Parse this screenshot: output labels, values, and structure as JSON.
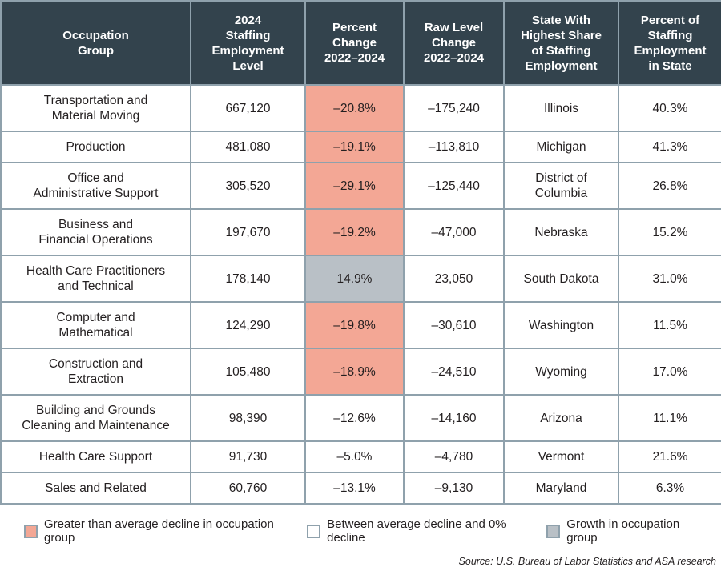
{
  "chart_data": {
    "type": "table",
    "columns": [
      {
        "label": "Occupation\nGroup"
      },
      {
        "label": "2024\nStaffing\nEmployment\nLevel"
      },
      {
        "label": "Percent\nChange\n2022–2024"
      },
      {
        "label": "Raw Level\nChange\n2022–2024"
      },
      {
        "label": "State With\nHighest Share\nof Staffing\nEmployment"
      },
      {
        "label": "Percent of\nStaffing\nEmployment\nin State"
      }
    ],
    "rows": [
      {
        "occupation": "Transportation and\nMaterial Moving",
        "level": "667,120",
        "pct_change": "–20.8%",
        "raw_change": "–175,240",
        "state": "Illinois",
        "pct_in_state": "40.3%",
        "highlight": "pink"
      },
      {
        "occupation": "Production",
        "level": "481,080",
        "pct_change": "–19.1%",
        "raw_change": "–113,810",
        "state": "Michigan",
        "pct_in_state": "41.3%",
        "highlight": "pink"
      },
      {
        "occupation": "Office and\nAdministrative Support",
        "level": "305,520",
        "pct_change": "–29.1%",
        "raw_change": "–125,440",
        "state": "District of\nColumbia",
        "pct_in_state": "26.8%",
        "highlight": "pink"
      },
      {
        "occupation": "Business and\nFinancial Operations",
        "level": "197,670",
        "pct_change": "–19.2%",
        "raw_change": "–47,000",
        "state": "Nebraska",
        "pct_in_state": "15.2%",
        "highlight": "pink"
      },
      {
        "occupation": "Health Care Practitioners\nand Technical",
        "level": "178,140",
        "pct_change": "14.9%",
        "raw_change": "23,050",
        "state": "South Dakota",
        "pct_in_state": "31.0%",
        "highlight": "gray"
      },
      {
        "occupation": "Computer and\nMathematical",
        "level": "124,290",
        "pct_change": "–19.8%",
        "raw_change": "–30,610",
        "state": "Washington",
        "pct_in_state": "11.5%",
        "highlight": "pink"
      },
      {
        "occupation": "Construction and\nExtraction",
        "level": "105,480",
        "pct_change": "–18.9%",
        "raw_change": "–24,510",
        "state": "Wyoming",
        "pct_in_state": "17.0%",
        "highlight": "pink"
      },
      {
        "occupation": "Building and Grounds\nCleaning and Maintenance",
        "level": "98,390",
        "pct_change": "–12.6%",
        "raw_change": "–14,160",
        "state": "Arizona",
        "pct_in_state": "11.1%",
        "highlight": "white"
      },
      {
        "occupation": "Health Care Support",
        "level": "91,730",
        "pct_change": "–5.0%",
        "raw_change": "–4,780",
        "state": "Vermont",
        "pct_in_state": "21.6%",
        "highlight": "white"
      },
      {
        "occupation": "Sales and Related",
        "level": "60,760",
        "pct_change": "–13.1%",
        "raw_change": "–9,130",
        "state": "Maryland",
        "pct_in_state": "6.3%",
        "highlight": "white"
      }
    ]
  },
  "legend": [
    {
      "label": "Greater than average decline in occupation group",
      "swatch": "pink"
    },
    {
      "label": "Between average decline and 0% decline",
      "swatch": "white"
    },
    {
      "label": "Growth in occupation group",
      "swatch": "gray"
    }
  ],
  "source": "Source: U.S. Bureau of Labor Statistics and ASA research",
  "colors": {
    "pink": "#f3a795",
    "gray": "#b9c0c6",
    "white": "#ffffff",
    "header_bg": "#33434d",
    "header_text": "#ffffff",
    "grid_border": "#8fa1ac",
    "outer_border": "#33434d",
    "text": "#231f20"
  }
}
